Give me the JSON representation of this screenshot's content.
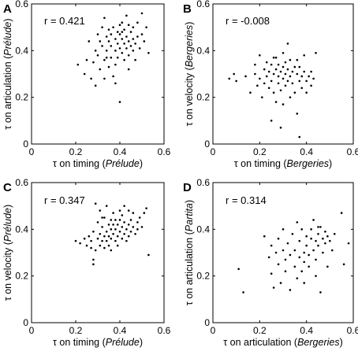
{
  "chart_data": [
    {
      "type": "scatter",
      "panel": "A",
      "annotation": "r = 0.421",
      "xlabel_parts": [
        "τ on timing (",
        "Prélude",
        ")"
      ],
      "ylabel_parts": [
        "τ on articulation (",
        "Prélude",
        ")"
      ],
      "xlim": [
        0,
        0.6
      ],
      "ylim": [
        0,
        0.6
      ],
      "xticks": [
        "0",
        "0.2",
        "0.4",
        "0.6"
      ],
      "yticks": [
        "0",
        "0.2",
        "0.4",
        "0.6"
      ],
      "points": [
        [
          0.21,
          0.34
        ],
        [
          0.24,
          0.3
        ],
        [
          0.25,
          0.36
        ],
        [
          0.26,
          0.44
        ],
        [
          0.27,
          0.28
        ],
        [
          0.28,
          0.35
        ],
        [
          0.29,
          0.4
        ],
        [
          0.3,
          0.47
        ],
        [
          0.3,
          0.38
        ],
        [
          0.31,
          0.44
        ],
        [
          0.31,
          0.32
        ],
        [
          0.32,
          0.5
        ],
        [
          0.32,
          0.42
        ],
        [
          0.33,
          0.36
        ],
        [
          0.33,
          0.28
        ],
        [
          0.33,
          0.54
        ],
        [
          0.34,
          0.46
        ],
        [
          0.34,
          0.4
        ],
        [
          0.35,
          0.44
        ],
        [
          0.35,
          0.49
        ],
        [
          0.35,
          0.33
        ],
        [
          0.36,
          0.47
        ],
        [
          0.36,
          0.37
        ],
        [
          0.36,
          0.42
        ],
        [
          0.37,
          0.29
        ],
        [
          0.37,
          0.5
        ],
        [
          0.38,
          0.45
        ],
        [
          0.38,
          0.4
        ],
        [
          0.38,
          0.34
        ],
        [
          0.39,
          0.48
        ],
        [
          0.39,
          0.43
        ],
        [
          0.39,
          0.37
        ],
        [
          0.4,
          0.51
        ],
        [
          0.4,
          0.47
        ],
        [
          0.4,
          0.41
        ],
        [
          0.4,
          0.18
        ],
        [
          0.41,
          0.45
        ],
        [
          0.41,
          0.39
        ],
        [
          0.41,
          0.52
        ],
        [
          0.42,
          0.43
        ],
        [
          0.42,
          0.49
        ],
        [
          0.42,
          0.36
        ],
        [
          0.43,
          0.46
        ],
        [
          0.43,
          0.41
        ],
        [
          0.43,
          0.55
        ],
        [
          0.44,
          0.44
        ],
        [
          0.44,
          0.38
        ],
        [
          0.44,
          0.32
        ],
        [
          0.45,
          0.48
        ],
        [
          0.45,
          0.42
        ],
        [
          0.46,
          0.5
        ],
        [
          0.46,
          0.45
        ],
        [
          0.46,
          0.4
        ],
        [
          0.47,
          0.43
        ],
        [
          0.47,
          0.36
        ],
        [
          0.48,
          0.46
        ],
        [
          0.48,
          0.52
        ],
        [
          0.49,
          0.41
        ],
        [
          0.5,
          0.56
        ],
        [
          0.5,
          0.47
        ],
        [
          0.51,
          0.44
        ],
        [
          0.52,
          0.5
        ],
        [
          0.53,
          0.39
        ],
        [
          0.38,
          0.26
        ],
        [
          0.29,
          0.25
        ],
        [
          0.34,
          0.37
        ],
        [
          0.41,
          0.48
        ],
        [
          0.44,
          0.51
        ]
      ]
    },
    {
      "type": "scatter",
      "panel": "B",
      "annotation": "r = -0.008",
      "xlabel_parts": [
        "τ on timing (",
        "Bergeries",
        ")"
      ],
      "ylabel_parts": [
        "τ on velocity (",
        "Bergeries",
        ")"
      ],
      "xlim": [
        0,
        0.6
      ],
      "ylim": [
        0,
        0.6
      ],
      "xticks": [
        "0",
        "0.2",
        "0.4",
        "0.6"
      ],
      "yticks": [
        "0",
        "0.2",
        "0.4",
        "0.6"
      ],
      "points": [
        [
          0.07,
          0.28
        ],
        [
          0.09,
          0.3
        ],
        [
          0.1,
          0.27
        ],
        [
          0.14,
          0.29
        ],
        [
          0.16,
          0.22
        ],
        [
          0.18,
          0.3
        ],
        [
          0.18,
          0.34
        ],
        [
          0.19,
          0.25
        ],
        [
          0.2,
          0.28
        ],
        [
          0.2,
          0.38
        ],
        [
          0.21,
          0.2
        ],
        [
          0.22,
          0.26
        ],
        [
          0.22,
          0.32
        ],
        [
          0.23,
          0.35
        ],
        [
          0.23,
          0.29
        ],
        [
          0.24,
          0.24
        ],
        [
          0.24,
          0.31
        ],
        [
          0.25,
          0.27
        ],
        [
          0.25,
          0.34
        ],
        [
          0.25,
          0.1
        ],
        [
          0.26,
          0.3
        ],
        [
          0.26,
          0.22
        ],
        [
          0.27,
          0.32
        ],
        [
          0.27,
          0.37
        ],
        [
          0.27,
          0.18
        ],
        [
          0.28,
          0.29
        ],
        [
          0.28,
          0.26
        ],
        [
          0.28,
          0.34
        ],
        [
          0.29,
          0.31
        ],
        [
          0.29,
          0.07
        ],
        [
          0.29,
          0.23
        ],
        [
          0.3,
          0.33
        ],
        [
          0.3,
          0.28
        ],
        [
          0.3,
          0.39
        ],
        [
          0.3,
          0.17
        ],
        [
          0.31,
          0.3
        ],
        [
          0.31,
          0.35
        ],
        [
          0.31,
          0.25
        ],
        [
          0.32,
          0.32
        ],
        [
          0.32,
          0.27
        ],
        [
          0.32,
          0.43
        ],
        [
          0.33,
          0.29
        ],
        [
          0.33,
          0.36
        ],
        [
          0.33,
          0.2
        ],
        [
          0.34,
          0.31
        ],
        [
          0.34,
          0.26
        ],
        [
          0.35,
          0.33
        ],
        [
          0.35,
          0.22
        ],
        [
          0.36,
          0.3
        ],
        [
          0.36,
          0.36
        ],
        [
          0.36,
          0.13
        ],
        [
          0.37,
          0.27
        ],
        [
          0.37,
          0.33
        ],
        [
          0.38,
          0.29
        ],
        [
          0.38,
          0.24
        ],
        [
          0.39,
          0.31
        ],
        [
          0.39,
          0.38
        ],
        [
          0.4,
          0.27
        ],
        [
          0.4,
          0.22
        ],
        [
          0.41,
          0.29
        ],
        [
          0.42,
          0.25
        ],
        [
          0.42,
          0.31
        ],
        [
          0.43,
          0.28
        ],
        [
          0.44,
          0.39
        ],
        [
          0.37,
          0.03
        ],
        [
          0.26,
          0.37
        ]
      ]
    },
    {
      "type": "scatter",
      "panel": "C",
      "annotation": "r = 0.347",
      "xlabel_parts": [
        "τ on timing (",
        "Prélude",
        ")"
      ],
      "ylabel_parts": [
        "τ on velocity (",
        "Prélude",
        ")"
      ],
      "xlim": [
        0,
        0.6
      ],
      "ylim": [
        0,
        0.6
      ],
      "xticks": [
        "0",
        "0.2",
        "0.4",
        "0.6"
      ],
      "yticks": [
        "0",
        "0.2",
        "0.4",
        "0.6"
      ],
      "points": [
        [
          0.2,
          0.35
        ],
        [
          0.22,
          0.34
        ],
        [
          0.24,
          0.36
        ],
        [
          0.25,
          0.33
        ],
        [
          0.26,
          0.37
        ],
        [
          0.27,
          0.32
        ],
        [
          0.27,
          0.35
        ],
        [
          0.28,
          0.25
        ],
        [
          0.28,
          0.39
        ],
        [
          0.29,
          0.31
        ],
        [
          0.29,
          0.51
        ],
        [
          0.3,
          0.36
        ],
        [
          0.3,
          0.43
        ],
        [
          0.31,
          0.33
        ],
        [
          0.31,
          0.38
        ],
        [
          0.31,
          0.48
        ],
        [
          0.32,
          0.35
        ],
        [
          0.32,
          0.41
        ],
        [
          0.33,
          0.37
        ],
        [
          0.33,
          0.32
        ],
        [
          0.33,
          0.45
        ],
        [
          0.34,
          0.39
        ],
        [
          0.34,
          0.35
        ],
        [
          0.34,
          0.5
        ],
        [
          0.35,
          0.42
        ],
        [
          0.35,
          0.37
        ],
        [
          0.35,
          0.33
        ],
        [
          0.36,
          0.4
        ],
        [
          0.36,
          0.44
        ],
        [
          0.36,
          0.36
        ],
        [
          0.37,
          0.38
        ],
        [
          0.37,
          0.42
        ],
        [
          0.37,
          0.47
        ],
        [
          0.38,
          0.35
        ],
        [
          0.38,
          0.4
        ],
        [
          0.38,
          0.44
        ],
        [
          0.39,
          0.37
        ],
        [
          0.39,
          0.42
        ],
        [
          0.39,
          0.33
        ],
        [
          0.4,
          0.39
        ],
        [
          0.4,
          0.44
        ],
        [
          0.4,
          0.48
        ],
        [
          0.41,
          0.36
        ],
        [
          0.41,
          0.41
        ],
        [
          0.41,
          0.46
        ],
        [
          0.42,
          0.38
        ],
        [
          0.42,
          0.43
        ],
        [
          0.42,
          0.5
        ],
        [
          0.43,
          0.4
        ],
        [
          0.43,
          0.35
        ],
        [
          0.44,
          0.42
        ],
        [
          0.44,
          0.37
        ],
        [
          0.45,
          0.44
        ],
        [
          0.45,
          0.39
        ],
        [
          0.46,
          0.41
        ],
        [
          0.46,
          0.47
        ],
        [
          0.47,
          0.38
        ],
        [
          0.48,
          0.43
        ],
        [
          0.48,
          0.4
        ],
        [
          0.49,
          0.45
        ],
        [
          0.5,
          0.41
        ],
        [
          0.51,
          0.47
        ],
        [
          0.52,
          0.49
        ],
        [
          0.53,
          0.29
        ],
        [
          0.28,
          0.27
        ],
        [
          0.32,
          0.45
        ],
        [
          0.44,
          0.48
        ],
        [
          0.36,
          0.31
        ]
      ]
    },
    {
      "type": "scatter",
      "panel": "D",
      "annotation": "r = 0.314",
      "xlabel_parts": [
        "τ on articulation (",
        "Bergeries",
        ")"
      ],
      "ylabel_parts": [
        "τ on articulation (",
        "Partita",
        ")"
      ],
      "xlim": [
        0,
        0.6
      ],
      "ylim": [
        0,
        0.6
      ],
      "xticks": [
        "0",
        "0.2",
        "0.4",
        "0.6"
      ],
      "yticks": [
        "0",
        "0.2",
        "0.4",
        "0.6"
      ],
      "points": [
        [
          0.11,
          0.23
        ],
        [
          0.13,
          0.13
        ],
        [
          0.22,
          0.37
        ],
        [
          0.24,
          0.28
        ],
        [
          0.25,
          0.21
        ],
        [
          0.25,
          0.33
        ],
        [
          0.26,
          0.15
        ],
        [
          0.27,
          0.3
        ],
        [
          0.28,
          0.25
        ],
        [
          0.28,
          0.36
        ],
        [
          0.29,
          0.17
        ],
        [
          0.3,
          0.31
        ],
        [
          0.31,
          0.27
        ],
        [
          0.31,
          0.22
        ],
        [
          0.32,
          0.34
        ],
        [
          0.33,
          0.14
        ],
        [
          0.33,
          0.29
        ],
        [
          0.34,
          0.38
        ],
        [
          0.35,
          0.24
        ],
        [
          0.35,
          0.31
        ],
        [
          0.36,
          0.43
        ],
        [
          0.36,
          0.19
        ],
        [
          0.37,
          0.28
        ],
        [
          0.37,
          0.35
        ],
        [
          0.38,
          0.22
        ],
        [
          0.38,
          0.4
        ],
        [
          0.39,
          0.3
        ],
        [
          0.39,
          0.26
        ],
        [
          0.4,
          0.33
        ],
        [
          0.4,
          0.37
        ],
        [
          0.41,
          0.24
        ],
        [
          0.41,
          0.29
        ],
        [
          0.42,
          0.36
        ],
        [
          0.42,
          0.4
        ],
        [
          0.43,
          0.31
        ],
        [
          0.43,
          0.44
        ],
        [
          0.44,
          0.27
        ],
        [
          0.44,
          0.35
        ],
        [
          0.45,
          0.38
        ],
        [
          0.45,
          0.33
        ],
        [
          0.46,
          0.41
        ],
        [
          0.46,
          0.13
        ],
        [
          0.47,
          0.36
        ],
        [
          0.47,
          0.3
        ],
        [
          0.48,
          0.39
        ],
        [
          0.48,
          0.34
        ],
        [
          0.49,
          0.37
        ],
        [
          0.49,
          0.24
        ],
        [
          0.5,
          0.35
        ],
        [
          0.51,
          0.31
        ],
        [
          0.52,
          0.38
        ],
        [
          0.55,
          0.47
        ],
        [
          0.56,
          0.25
        ],
        [
          0.58,
          0.34
        ],
        [
          0.39,
          0.17
        ],
        [
          0.44,
          0.2
        ],
        [
          0.3,
          0.4
        ],
        [
          0.45,
          0.41
        ]
      ]
    }
  ]
}
